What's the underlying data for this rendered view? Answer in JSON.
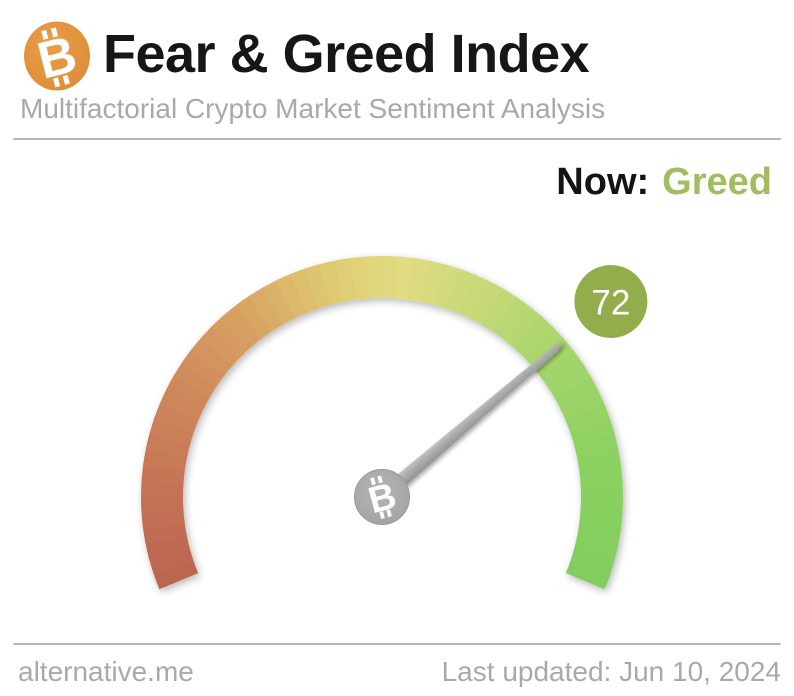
{
  "header": {
    "logo_icon": "bitcoin-icon",
    "logo_color": "#e2923f",
    "title": "Fear & Greed Index",
    "title_color": "#161616",
    "subtitle": "Multifactorial Crypto Market Sentiment Analysis",
    "subtitle_color": "#a9a9a9"
  },
  "status": {
    "label": "Now:",
    "value": "Greed",
    "value_color": "#a2bc62"
  },
  "chart_data": {
    "type": "gauge",
    "title": "Fear & Greed Index",
    "value": 72,
    "min": 0,
    "max": 100,
    "sentiment": "Greed",
    "start_angle_deg": 202.5,
    "sweep_deg": 225,
    "badge": {
      "label": "72",
      "fill": "#93ad4d",
      "text_color": "#ffffff"
    },
    "needle_color": "#a9a9a9",
    "hub_icon": "bitcoin-icon",
    "color_stops": [
      {
        "t": 0.0,
        "color": "#ba6550"
      },
      {
        "t": 0.1,
        "color": "#c47255"
      },
      {
        "t": 0.22,
        "color": "#cf875b"
      },
      {
        "t": 0.34,
        "color": "#d8a463"
      },
      {
        "t": 0.44,
        "color": "#deca71"
      },
      {
        "t": 0.52,
        "color": "#e2dc81"
      },
      {
        "t": 0.62,
        "color": "#c6d977"
      },
      {
        "t": 0.74,
        "color": "#a2d469"
      },
      {
        "t": 0.86,
        "color": "#8cd162"
      },
      {
        "t": 1.0,
        "color": "#80ce5e"
      }
    ]
  },
  "footer": {
    "source": "alternative.me",
    "updated": "Last updated: Jun 10, 2024"
  }
}
